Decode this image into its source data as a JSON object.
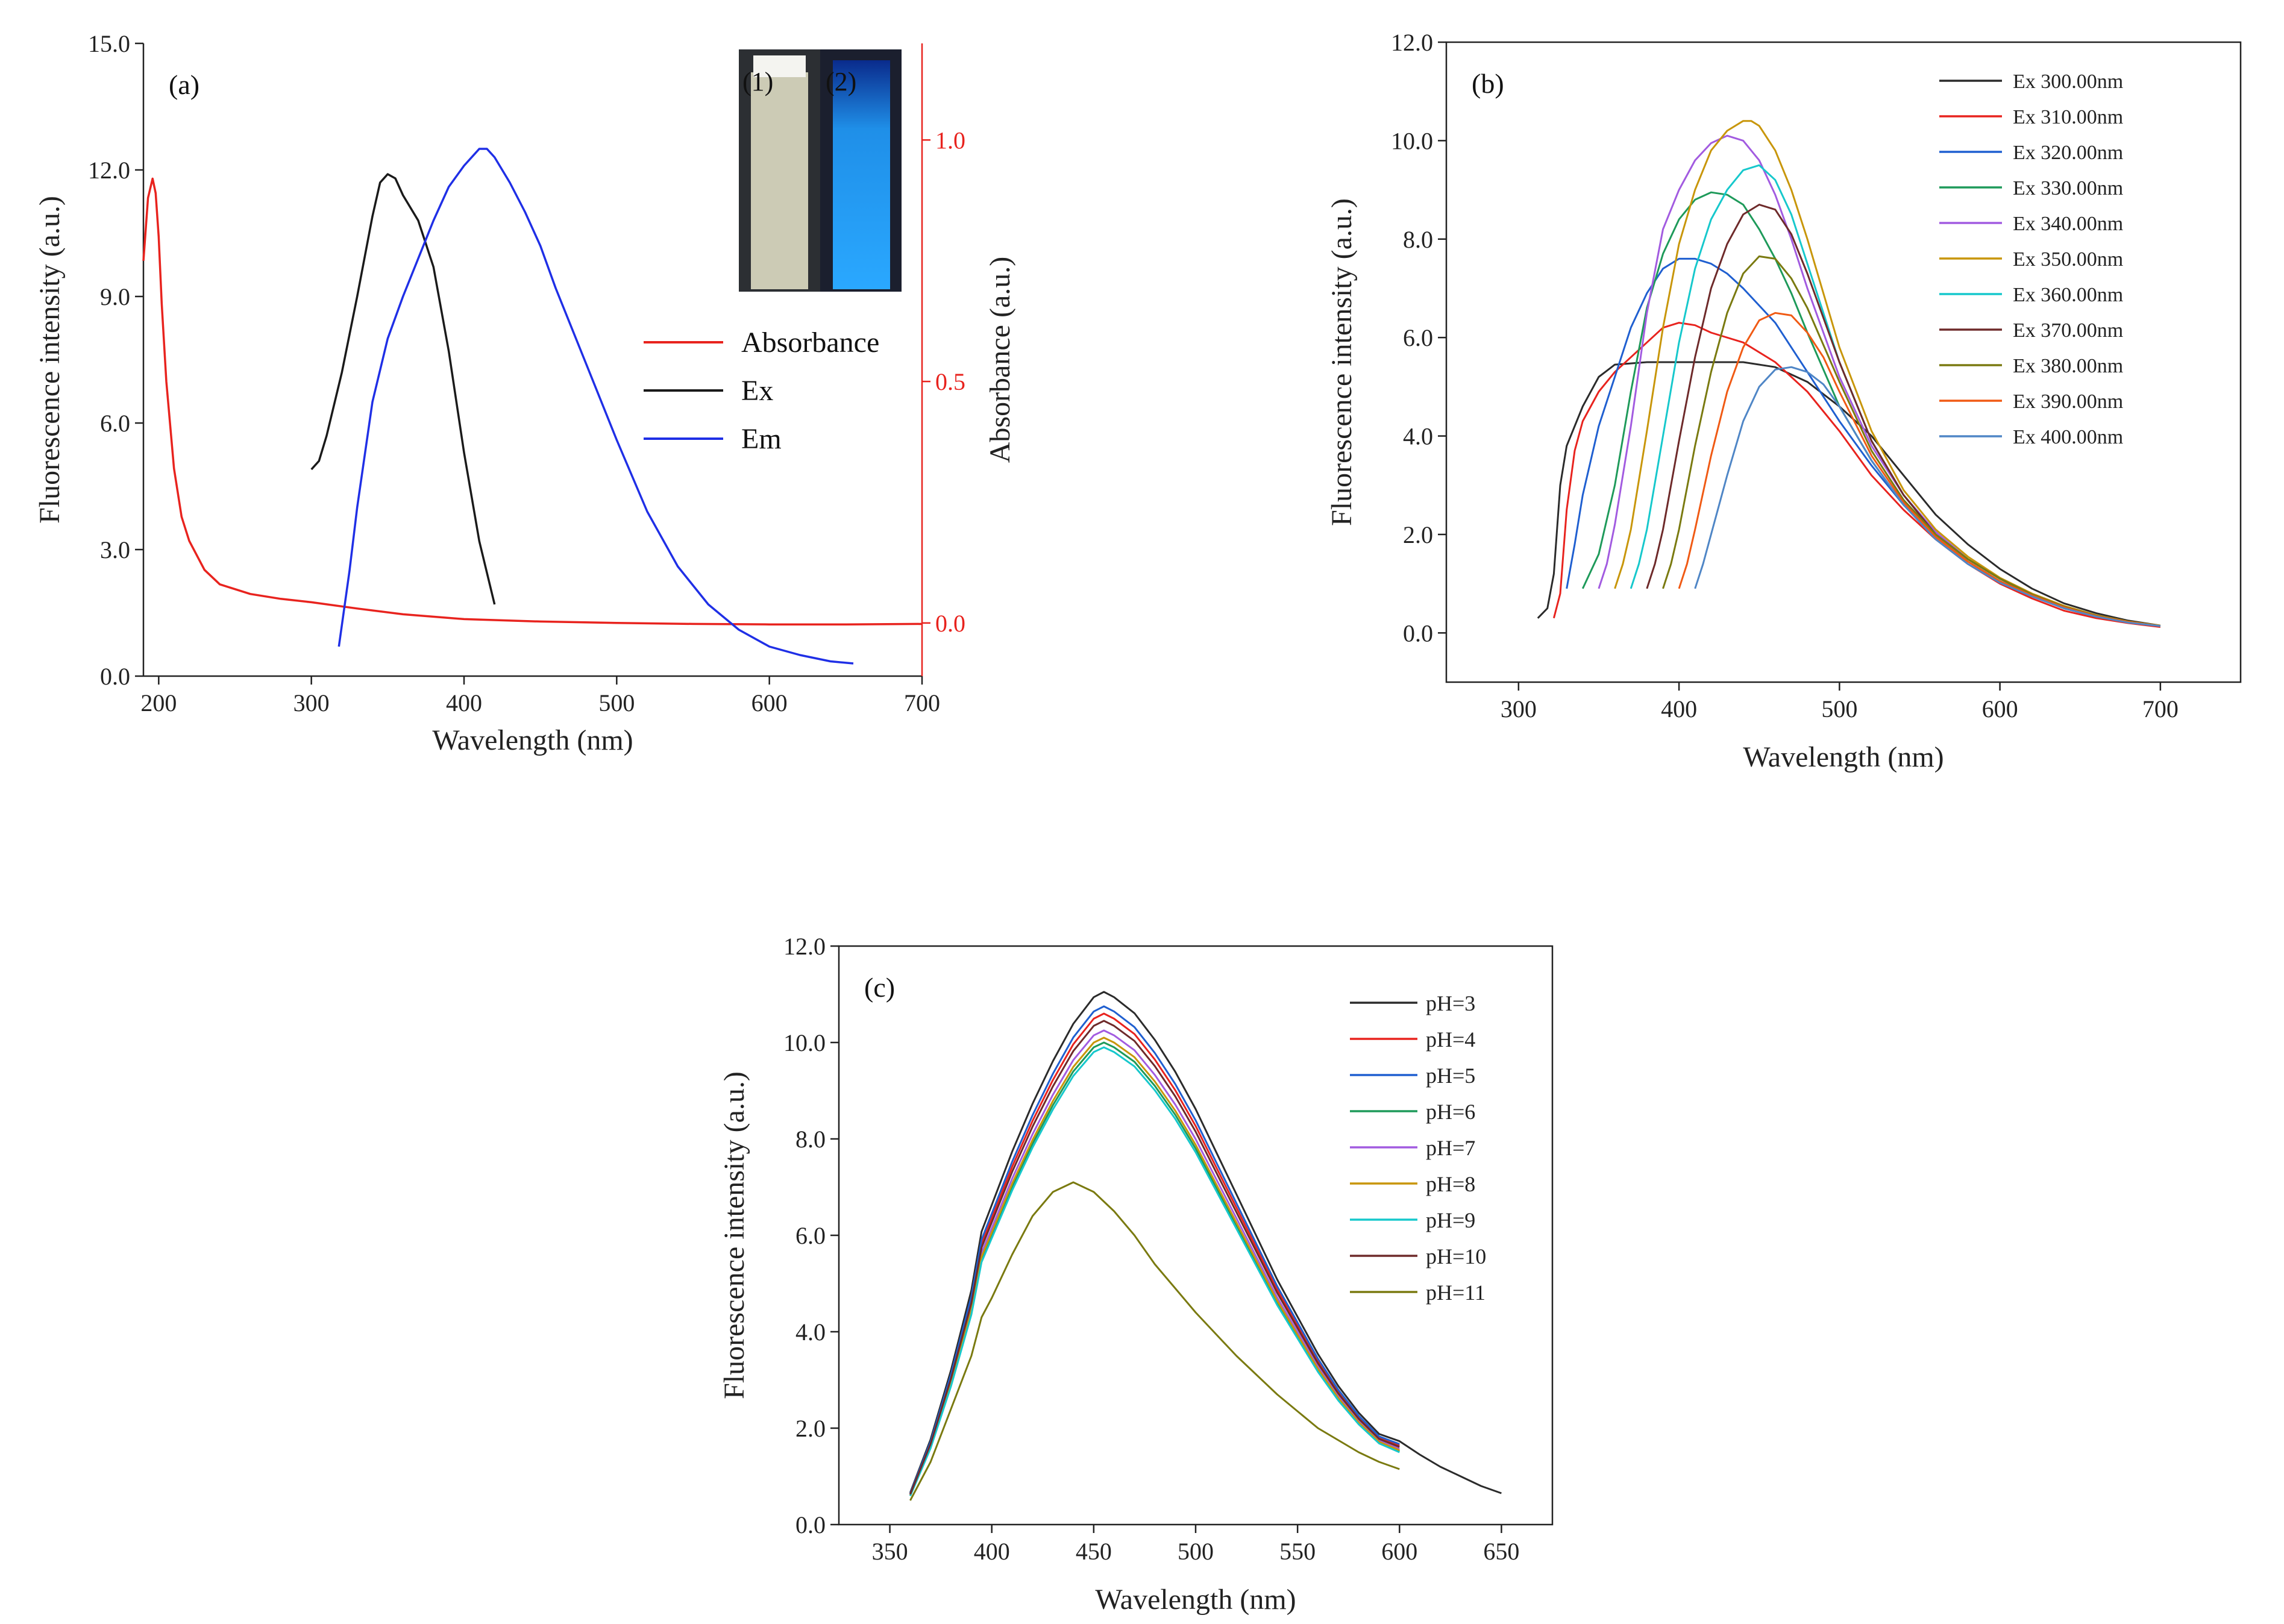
{
  "chart_data": [
    {
      "type": "line",
      "panel_label": "(a)",
      "xlabel": "Wavelength (nm)",
      "ylabel": "Fluorescence intensity (a.u.)",
      "y2label": "Absorbance (a.u.)",
      "xlim": [
        190,
        700
      ],
      "ylim": [
        0,
        15
      ],
      "y2lim": [
        -0.11,
        1.2
      ],
      "xticks": [
        200,
        300,
        400,
        500,
        600,
        700
      ],
      "yticks": [
        0.0,
        3.0,
        6.0,
        9.0,
        12.0,
        15.0
      ],
      "y2ticks": [
        0.0,
        0.5,
        1.0
      ],
      "xtick_labels": [
        "200",
        "300",
        "400",
        "500",
        "600",
        "700"
      ],
      "ytick_labels": [
        "0.0",
        "3.0",
        "6.0",
        "9.0",
        "12.0",
        "15.0"
      ],
      "y2tick_labels": [
        "0.0",
        "0.5",
        "1.0"
      ],
      "inset": {
        "labels": [
          "(1)",
          "(2)"
        ],
        "colors": [
          "#e9e6cc",
          "#1f8fe8"
        ]
      },
      "series": [
        {
          "name": "Absorbance",
          "color": "#e8231e",
          "axis": "right",
          "x": [
            190,
            193,
            196,
            198,
            200,
            202,
            205,
            210,
            215,
            220,
            230,
            240,
            250,
            260,
            280,
            300,
            330,
            360,
            400,
            450,
            500,
            550,
            600,
            650,
            700
          ],
          "y": [
            0.75,
            0.88,
            0.92,
            0.89,
            0.8,
            0.66,
            0.5,
            0.32,
            0.22,
            0.17,
            0.11,
            0.08,
            0.07,
            0.06,
            0.05,
            0.043,
            0.03,
            0.018,
            0.008,
            0.003,
            0.0,
            -0.002,
            -0.003,
            -0.003,
            -0.002
          ]
        },
        {
          "name": "Ex",
          "color": "#1a1a1a",
          "axis": "left",
          "x": [
            300,
            305,
            310,
            320,
            330,
            340,
            345,
            350,
            355,
            360,
            370,
            380,
            390,
            400,
            410,
            420
          ],
          "y": [
            4.9,
            5.1,
            5.7,
            7.2,
            9.0,
            10.9,
            11.7,
            11.9,
            11.8,
            11.4,
            10.8,
            9.7,
            7.7,
            5.3,
            3.2,
            1.7
          ]
        },
        {
          "name": "Em",
          "color": "#1f2fe6",
          "axis": "left",
          "x": [
            318,
            325,
            330,
            340,
            350,
            360,
            370,
            380,
            390,
            400,
            410,
            415,
            420,
            430,
            440,
            450,
            460,
            480,
            500,
            520,
            540,
            560,
            580,
            600,
            620,
            640,
            655
          ],
          "y": [
            0.7,
            2.5,
            4.0,
            6.5,
            8.0,
            9.0,
            9.9,
            10.8,
            11.6,
            12.1,
            12.5,
            12.5,
            12.3,
            11.7,
            11.0,
            10.2,
            9.2,
            7.4,
            5.6,
            3.9,
            2.6,
            1.7,
            1.1,
            0.7,
            0.5,
            0.35,
            0.3
          ]
        }
      ]
    },
    {
      "type": "line",
      "panel_label": "(b)",
      "xlabel": "Wavelength (nm)",
      "ylabel": "Fluorescence intensity (a.u.)",
      "xlim": [
        255,
        750
      ],
      "ylim": [
        -1,
        12
      ],
      "xticks": [
        300,
        400,
        500,
        600,
        700
      ],
      "yticks": [
        0.0,
        2.0,
        4.0,
        6.0,
        8.0,
        10.0,
        12.0
      ],
      "xtick_labels": [
        "300",
        "400",
        "500",
        "600",
        "700"
      ],
      "ytick_labels": [
        "0.0",
        "2.0",
        "4.0",
        "6.0",
        "8.0",
        "10.0",
        "12.0"
      ],
      "series": [
        {
          "name": "Ex 300.00nm",
          "color": "#2b2b2b",
          "x": [
            312,
            318,
            322,
            326,
            330,
            340,
            350,
            360,
            380,
            400,
            420,
            440,
            460,
            480,
            500,
            520,
            540,
            560,
            580,
            600,
            620,
            640,
            660,
            680,
            700
          ],
          "y": [
            0.3,
            0.5,
            1.2,
            3.0,
            3.8,
            4.6,
            5.2,
            5.45,
            5.5,
            5.5,
            5.5,
            5.5,
            5.4,
            5.1,
            4.6,
            4.0,
            3.2,
            2.4,
            1.8,
            1.3,
            0.9,
            0.6,
            0.4,
            0.25,
            0.15
          ]
        },
        {
          "name": "Ex 310.00nm",
          "color": "#e8231e",
          "x": [
            322,
            326,
            330,
            335,
            340,
            350,
            360,
            370,
            380,
            390,
            400,
            410,
            420,
            440,
            460,
            480,
            500,
            520,
            540,
            560,
            580,
            600,
            620,
            640,
            660,
            680,
            700
          ],
          "y": [
            0.3,
            0.8,
            2.5,
            3.7,
            4.3,
            4.9,
            5.3,
            5.6,
            5.9,
            6.2,
            6.3,
            6.25,
            6.1,
            5.9,
            5.5,
            4.9,
            4.1,
            3.2,
            2.5,
            1.9,
            1.4,
            1.0,
            0.7,
            0.45,
            0.3,
            0.2,
            0.12
          ]
        },
        {
          "name": "Ex 320.00nm",
          "color": "#1f5fd0",
          "x": [
            330,
            335,
            340,
            350,
            360,
            370,
            380,
            390,
            400,
            410,
            420,
            430,
            440,
            460,
            480,
            500,
            520,
            540,
            560,
            580,
            600,
            620,
            640,
            660,
            680,
            700
          ],
          "y": [
            0.9,
            1.8,
            2.8,
            4.2,
            5.2,
            6.2,
            6.9,
            7.4,
            7.6,
            7.6,
            7.5,
            7.3,
            7.0,
            6.3,
            5.3,
            4.3,
            3.4,
            2.6,
            1.95,
            1.45,
            1.05,
            0.75,
            0.5,
            0.33,
            0.22,
            0.14
          ]
        },
        {
          "name": "Ex 330.00nm",
          "color": "#1e9a5a",
          "x": [
            340,
            350,
            360,
            370,
            380,
            390,
            400,
            410,
            420,
            430,
            440,
            450,
            460,
            470,
            480,
            500,
            520,
            540,
            560,
            580,
            600,
            620,
            640,
            660,
            680,
            700
          ],
          "y": [
            0.9,
            1.6,
            3.0,
            4.9,
            6.6,
            7.7,
            8.4,
            8.8,
            8.95,
            8.9,
            8.7,
            8.2,
            7.6,
            6.9,
            6.1,
            4.6,
            3.5,
            2.6,
            1.95,
            1.45,
            1.05,
            0.75,
            0.5,
            0.33,
            0.22,
            0.14
          ]
        },
        {
          "name": "Ex 340.00nm",
          "color": "#a25be0",
          "x": [
            350,
            355,
            360,
            370,
            380,
            390,
            400,
            410,
            420,
            430,
            440,
            450,
            460,
            470,
            480,
            500,
            520,
            540,
            560,
            580,
            600,
            620,
            640,
            660,
            680,
            700
          ],
          "y": [
            0.9,
            1.4,
            2.2,
            4.2,
            6.5,
            8.2,
            9.0,
            9.6,
            9.95,
            10.1,
            10.0,
            9.6,
            8.9,
            8.0,
            7.0,
            5.2,
            3.8,
            2.8,
            2.05,
            1.5,
            1.1,
            0.78,
            0.52,
            0.34,
            0.22,
            0.14
          ]
        },
        {
          "name": "Ex 350.00nm",
          "color": "#c8960a",
          "x": [
            360,
            365,
            370,
            380,
            390,
            400,
            410,
            420,
            430,
            440,
            445,
            450,
            460,
            470,
            480,
            500,
            520,
            540,
            560,
            580,
            600,
            620,
            640,
            660,
            680,
            700
          ],
          "y": [
            0.9,
            1.4,
            2.1,
            4.1,
            6.2,
            7.9,
            9.0,
            9.8,
            10.2,
            10.4,
            10.4,
            10.3,
            9.8,
            9.0,
            8.0,
            5.8,
            4.1,
            2.9,
            2.1,
            1.55,
            1.12,
            0.8,
            0.55,
            0.36,
            0.23,
            0.15
          ]
        },
        {
          "name": "Ex 360.00nm",
          "color": "#16c8cc",
          "x": [
            370,
            375,
            380,
            390,
            400,
            410,
            420,
            430,
            440,
            450,
            460,
            470,
            480,
            500,
            520,
            540,
            560,
            580,
            600,
            620,
            640,
            660,
            680,
            700
          ],
          "y": [
            0.9,
            1.4,
            2.1,
            4.0,
            5.9,
            7.4,
            8.4,
            9.0,
            9.4,
            9.5,
            9.2,
            8.5,
            7.5,
            5.5,
            3.9,
            2.8,
            2.0,
            1.5,
            1.1,
            0.78,
            0.53,
            0.35,
            0.22,
            0.14
          ]
        },
        {
          "name": "Ex 370.00nm",
          "color": "#6e2a2a",
          "x": [
            380,
            385,
            390,
            400,
            410,
            420,
            430,
            440,
            450,
            460,
            470,
            480,
            500,
            520,
            540,
            560,
            580,
            600,
            620,
            640,
            660,
            680,
            700
          ],
          "y": [
            0.9,
            1.4,
            2.1,
            3.9,
            5.6,
            7.0,
            7.9,
            8.5,
            8.7,
            8.6,
            8.1,
            7.3,
            5.5,
            3.9,
            2.8,
            2.0,
            1.5,
            1.1,
            0.78,
            0.53,
            0.35,
            0.22,
            0.14
          ]
        },
        {
          "name": "Ex 380.00nm",
          "color": "#7a7a10",
          "x": [
            390,
            395,
            400,
            410,
            420,
            430,
            440,
            450,
            460,
            470,
            480,
            500,
            520,
            540,
            560,
            580,
            600,
            620,
            640,
            660,
            680,
            700
          ],
          "y": [
            0.9,
            1.4,
            2.1,
            3.8,
            5.3,
            6.5,
            7.3,
            7.65,
            7.6,
            7.2,
            6.6,
            5.1,
            3.7,
            2.7,
            2.0,
            1.5,
            1.1,
            0.78,
            0.53,
            0.35,
            0.22,
            0.14
          ]
        },
        {
          "name": "Ex 390.00nm",
          "color": "#f05a14",
          "x": [
            400,
            405,
            410,
            420,
            430,
            440,
            450,
            460,
            470,
            480,
            490,
            500,
            520,
            540,
            560,
            580,
            600,
            620,
            640,
            660,
            680,
            700
          ],
          "y": [
            0.9,
            1.4,
            2.1,
            3.6,
            4.9,
            5.8,
            6.35,
            6.5,
            6.45,
            6.1,
            5.6,
            4.9,
            3.6,
            2.65,
            1.95,
            1.45,
            1.05,
            0.76,
            0.52,
            0.34,
            0.22,
            0.14
          ]
        },
        {
          "name": "Ex 400.00nm",
          "color": "#4f86c6",
          "x": [
            410,
            415,
            420,
            430,
            440,
            450,
            460,
            470,
            480,
            490,
            500,
            520,
            540,
            560,
            580,
            600,
            620,
            640,
            660,
            680,
            700
          ],
          "y": [
            0.9,
            1.4,
            2.0,
            3.2,
            4.3,
            5.0,
            5.35,
            5.4,
            5.3,
            5.05,
            4.6,
            3.5,
            2.6,
            1.9,
            1.4,
            1.02,
            0.74,
            0.5,
            0.33,
            0.21,
            0.14
          ]
        }
      ]
    },
    {
      "type": "line",
      "panel_label": "(c)",
      "xlabel": "Wavelength (nm)",
      "ylabel": "Fluorescence intensity (a.u.)",
      "xlim": [
        325,
        675
      ],
      "ylim": [
        0,
        12
      ],
      "xticks": [
        350,
        400,
        450,
        500,
        550,
        600,
        650
      ],
      "yticks": [
        0.0,
        2.0,
        4.0,
        6.0,
        8.0,
        10.0,
        12.0
      ],
      "xtick_labels": [
        "350",
        "400",
        "450",
        "500",
        "550",
        "600",
        "650"
      ],
      "ytick_labels": [
        "0.0",
        "2.0",
        "4.0",
        "6.0",
        "8.0",
        "10.0",
        "12.0"
      ],
      "x": [
        360,
        370,
        380,
        390,
        395,
        400,
        410,
        420,
        430,
        440,
        450,
        455,
        460,
        470,
        480,
        490,
        500,
        510,
        520,
        530,
        540,
        550,
        560,
        570,
        580,
        590,
        600
      ],
      "shape": [
        0.06,
        0.16,
        0.29,
        0.44,
        0.55,
        0.6,
        0.7,
        0.79,
        0.87,
        0.94,
        0.99,
        1.0,
        0.99,
        0.96,
        0.91,
        0.85,
        0.78,
        0.7,
        0.62,
        0.54,
        0.46,
        0.39,
        0.32,
        0.26,
        0.21,
        0.17,
        0.14
      ],
      "tail_x": [
        600,
        610,
        620,
        630,
        640,
        650
      ],
      "tail_y": [
        1.8,
        1.45,
        1.2,
        1.0,
        0.8,
        0.65
      ],
      "series": [
        {
          "name": "pH=3",
          "color": "#2b2b2b",
          "peak": 11.05
        },
        {
          "name": "pH=4",
          "color": "#e8231e",
          "peak": 10.6
        },
        {
          "name": "pH=5",
          "color": "#1f5fd0",
          "peak": 10.75
        },
        {
          "name": "pH=6",
          "color": "#1e9a5a",
          "peak": 10.0
        },
        {
          "name": "pH=7",
          "color": "#a25be0",
          "peak": 10.25
        },
        {
          "name": "pH=8",
          "color": "#c8960a",
          "peak": 10.1
        },
        {
          "name": "pH=9",
          "color": "#16c8cc",
          "peak": 9.9
        },
        {
          "name": "pH=10",
          "color": "#6e2a2a",
          "peak": 10.45
        },
        {
          "name": "pH=11",
          "color": "#7a7a10",
          "x": [
            360,
            370,
            380,
            390,
            395,
            400,
            410,
            420,
            430,
            440,
            450,
            460,
            470,
            480,
            490,
            500,
            510,
            520,
            530,
            540,
            550,
            560,
            570,
            580,
            590,
            600
          ],
          "y": [
            0.5,
            1.3,
            2.4,
            3.5,
            4.3,
            4.7,
            5.6,
            6.4,
            6.9,
            7.1,
            6.9,
            6.5,
            6.0,
            5.4,
            4.9,
            4.4,
            3.95,
            3.5,
            3.1,
            2.7,
            2.35,
            2.0,
            1.75,
            1.5,
            1.3,
            1.15
          ]
        }
      ]
    }
  ]
}
